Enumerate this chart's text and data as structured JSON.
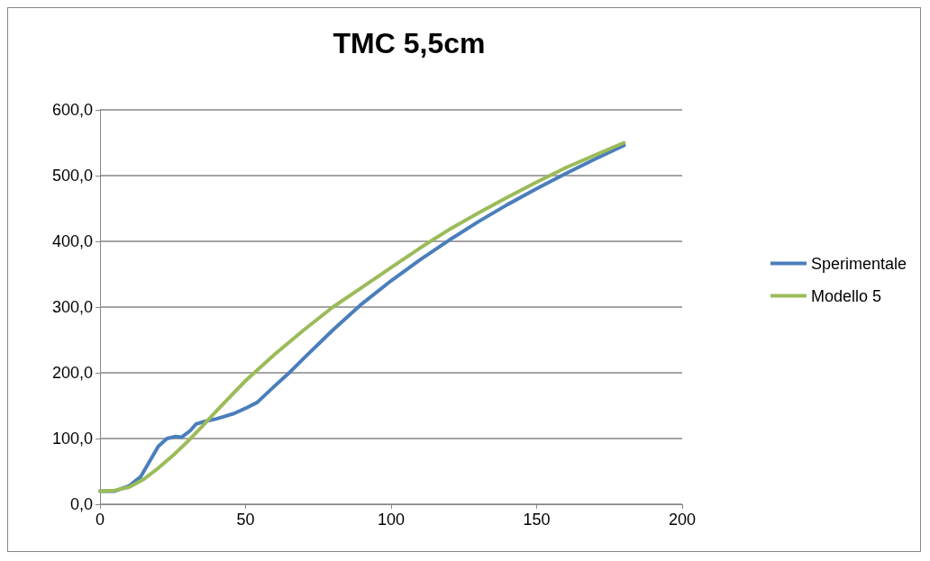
{
  "chart_data": {
    "type": "line",
    "title": "TMC 5,5cm",
    "xlim": [
      0,
      200
    ],
    "xticks": [
      0,
      50,
      100,
      150,
      200
    ],
    "ylim": [
      0,
      600
    ],
    "yticks": [
      {
        "value": 0,
        "label": "0,0"
      },
      {
        "value": 100,
        "label": "100,0"
      },
      {
        "value": 200,
        "label": "200,0"
      },
      {
        "value": 300,
        "label": "300,0"
      },
      {
        "value": 400,
        "label": "400,0"
      },
      {
        "value": 500,
        "label": "500,0"
      },
      {
        "value": 600,
        "label": "600,0"
      }
    ],
    "grid": "y",
    "legend": "right",
    "marker": "none",
    "line_style": "solid",
    "series": [
      {
        "name": "Sperimentale",
        "color": "#4a7ebb",
        "x": [
          0,
          5,
          10,
          14,
          17,
          20,
          23,
          26,
          28,
          31,
          33,
          36,
          40,
          46,
          50,
          54,
          60,
          65,
          70,
          80,
          90,
          100,
          110,
          120,
          130,
          140,
          150,
          160,
          170,
          180
        ],
        "values": [
          20,
          20,
          28,
          42,
          65,
          88,
          100,
          103,
          102,
          112,
          122,
          126,
          130,
          138,
          146,
          155,
          180,
          200,
          222,
          265,
          305,
          340,
          372,
          402,
          430,
          456,
          480,
          503,
          525,
          546
        ]
      },
      {
        "name": "Modello 5",
        "color": "#9bbb59",
        "x": [
          0,
          5,
          10,
          15,
          20,
          25,
          30,
          35,
          40,
          50,
          60,
          70,
          80,
          90,
          100,
          110,
          120,
          130,
          140,
          150,
          160,
          170,
          180
        ],
        "values": [
          20,
          21,
          26,
          38,
          55,
          74,
          95,
          118,
          142,
          188,
          228,
          265,
          300,
          330,
          360,
          390,
          418,
          443,
          467,
          490,
          512,
          531,
          550
        ]
      }
    ]
  }
}
